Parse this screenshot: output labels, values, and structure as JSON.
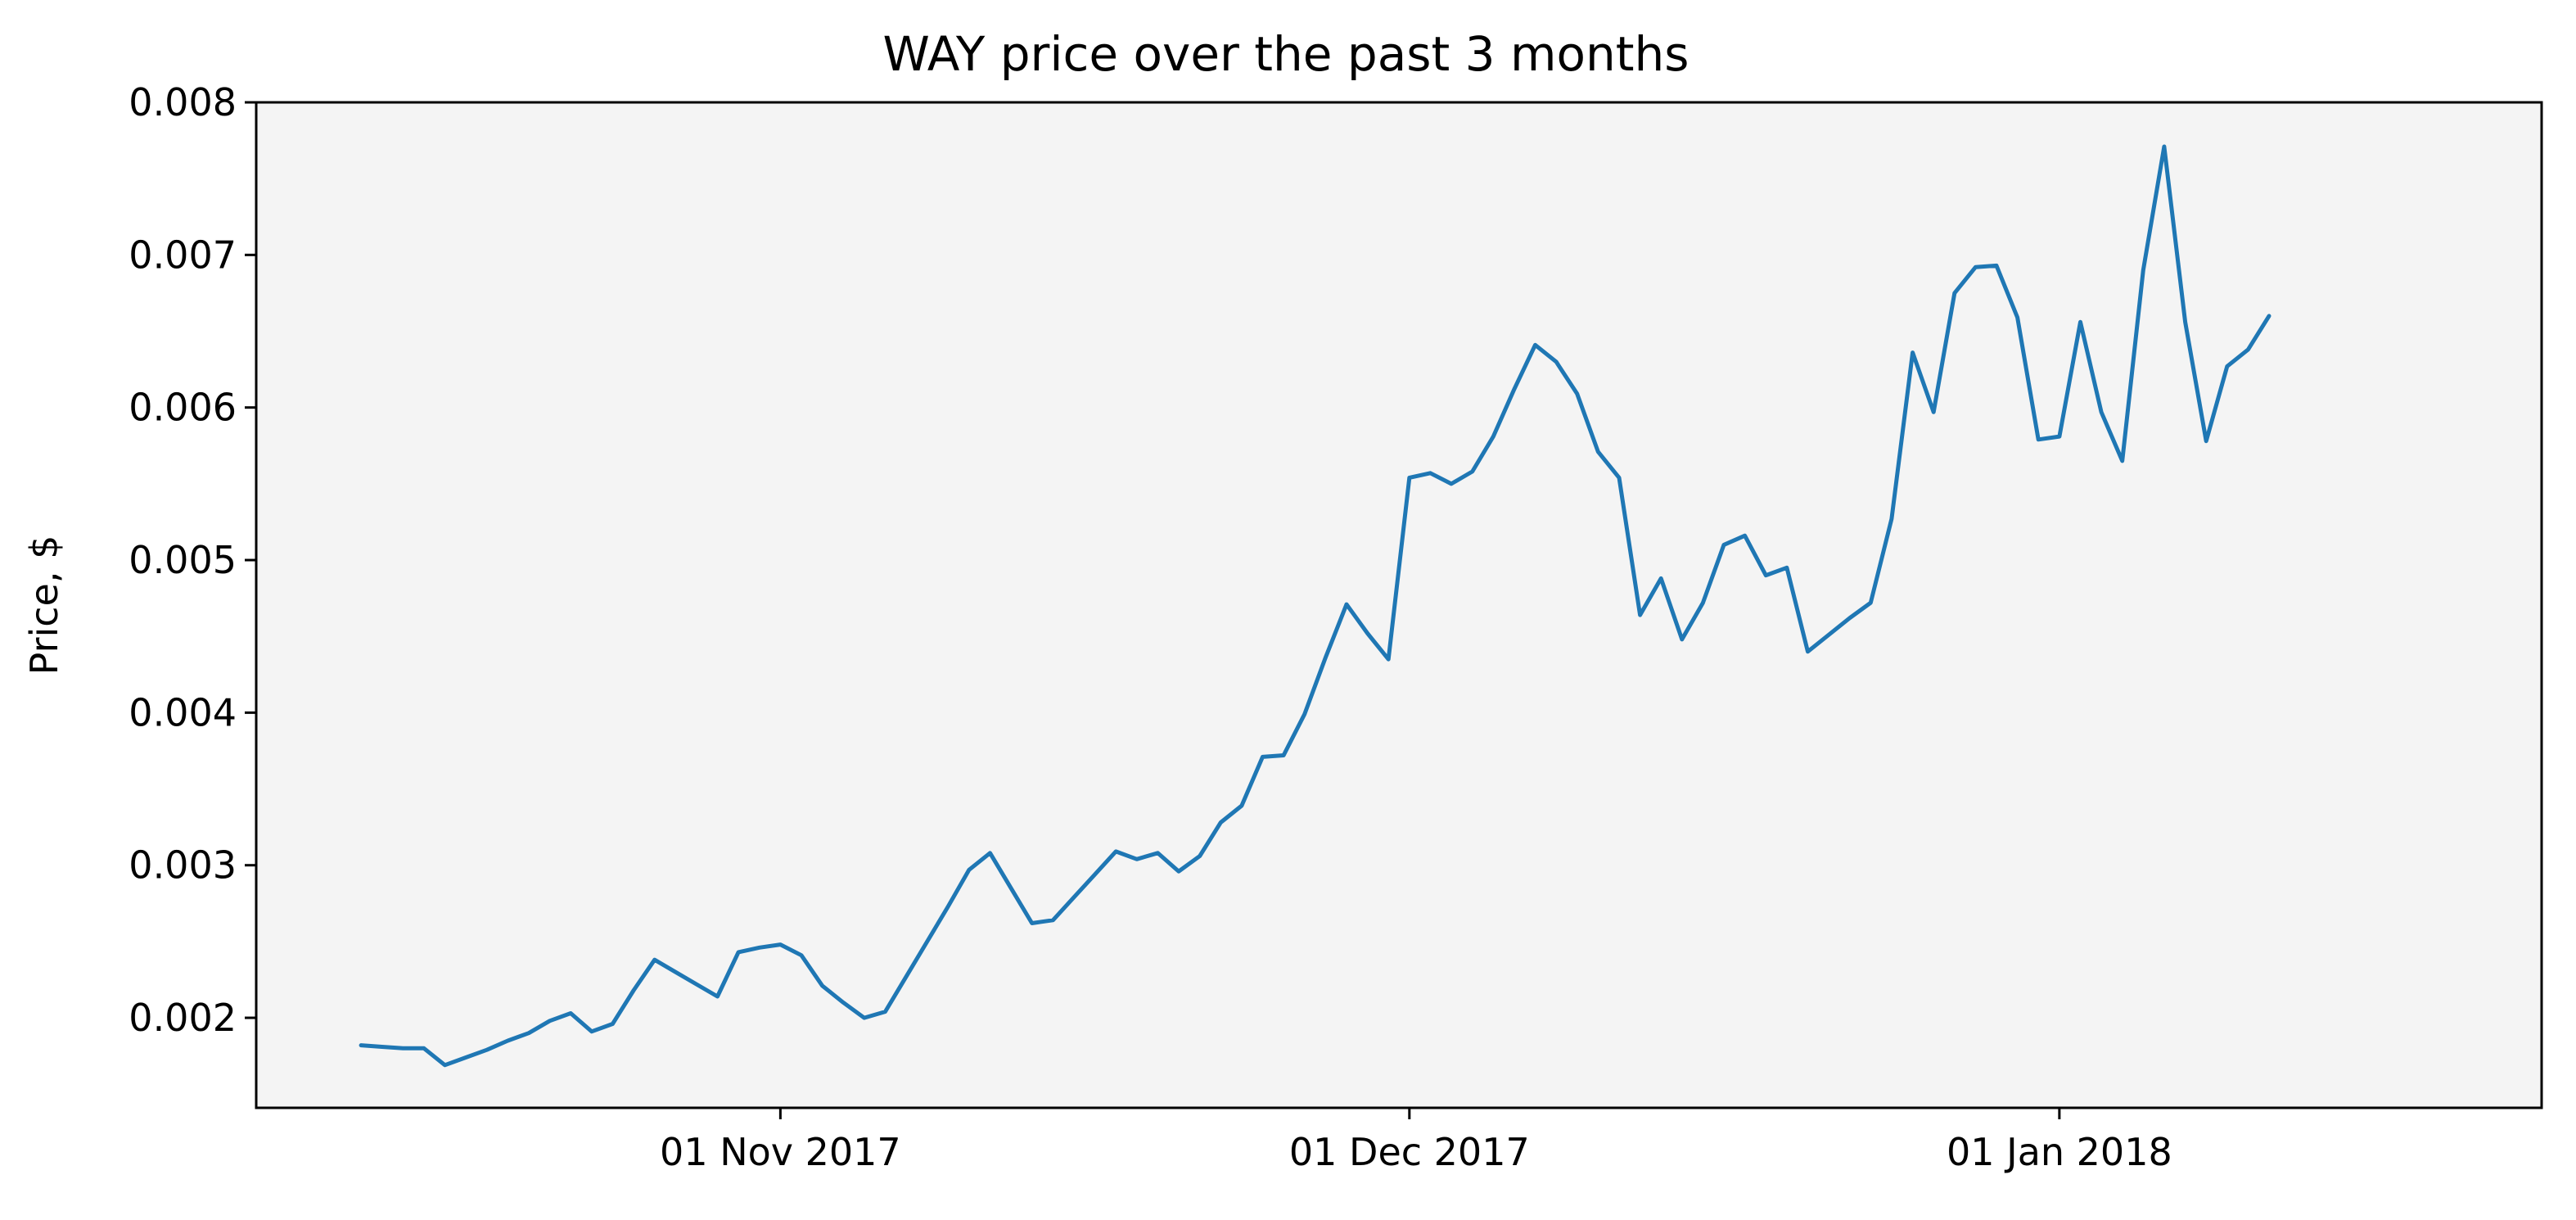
{
  "chart_data": {
    "type": "line",
    "title": "WAY price over the past 3 months",
    "xlabel": "",
    "ylabel": "Price, $",
    "xlim": [
      "2017-10-07",
      "2018-01-24"
    ],
    "ylim": [
      0.00141,
      0.008
    ],
    "grid": false,
    "legend": "none",
    "colors": {
      "line": "#1f77b4",
      "plot_bg": "#f4f4f4",
      "axis": "#000000"
    },
    "x_ticks": [
      {
        "date": "2017-11-01",
        "label": "01 Nov 2017"
      },
      {
        "date": "2017-12-01",
        "label": "01 Dec 2017"
      },
      {
        "date": "2018-01-01",
        "label": "01 Jan 2018"
      }
    ],
    "y_ticks": [
      {
        "value": 0.002,
        "label": "0.002"
      },
      {
        "value": 0.003,
        "label": "0.003"
      },
      {
        "value": 0.004,
        "label": "0.004"
      },
      {
        "value": 0.005,
        "label": "0.005"
      },
      {
        "value": 0.006,
        "label": "0.006"
      },
      {
        "value": 0.007,
        "label": "0.007"
      },
      {
        "value": 0.008,
        "label": "0.008"
      }
    ],
    "series": [
      {
        "points": [
          [
            "2017-10-12",
            0.00182
          ],
          [
            "2017-10-13",
            0.00181
          ],
          [
            "2017-10-14",
            0.0018
          ],
          [
            "2017-10-15",
            0.0018
          ],
          [
            "2017-10-16",
            0.00169
          ],
          [
            "2017-10-17",
            0.00174
          ],
          [
            "2017-10-18",
            0.00179
          ],
          [
            "2017-10-19",
            0.00185
          ],
          [
            "2017-10-20",
            0.0019
          ],
          [
            "2017-10-21",
            0.00198
          ],
          [
            "2017-10-22",
            0.00203
          ],
          [
            "2017-10-23",
            0.00191
          ],
          [
            "2017-10-24",
            0.00196
          ],
          [
            "2017-10-25",
            0.00218
          ],
          [
            "2017-10-26",
            0.00238
          ],
          [
            "2017-10-27",
            0.0023
          ],
          [
            "2017-10-28",
            0.00222
          ],
          [
            "2017-10-29",
            0.00214
          ],
          [
            "2017-10-30",
            0.00243
          ],
          [
            "2017-10-31",
            0.00246
          ],
          [
            "2017-11-01",
            0.00248
          ],
          [
            "2017-11-02",
            0.00241
          ],
          [
            "2017-11-03",
            0.00221
          ],
          [
            "2017-11-04",
            0.0021
          ],
          [
            "2017-11-05",
            0.002
          ],
          [
            "2017-11-06",
            0.00204
          ],
          [
            "2017-11-07",
            0.00227
          ],
          [
            "2017-11-08",
            0.0025
          ],
          [
            "2017-11-09",
            0.00273
          ],
          [
            "2017-11-10",
            0.00297
          ],
          [
            "2017-11-11",
            0.00308
          ],
          [
            "2017-11-12",
            0.00285
          ],
          [
            "2017-11-13",
            0.00262
          ],
          [
            "2017-11-14",
            0.00264
          ],
          [
            "2017-11-15",
            0.00279
          ],
          [
            "2017-11-16",
            0.00294
          ],
          [
            "2017-11-17",
            0.00309
          ],
          [
            "2017-11-18",
            0.00304
          ],
          [
            "2017-11-19",
            0.00308
          ],
          [
            "2017-11-20",
            0.00296
          ],
          [
            "2017-11-21",
            0.00306
          ],
          [
            "2017-11-22",
            0.00328
          ],
          [
            "2017-11-23",
            0.00339
          ],
          [
            "2017-11-24",
            0.00371
          ],
          [
            "2017-11-25",
            0.00372
          ],
          [
            "2017-11-26",
            0.00399
          ],
          [
            "2017-11-27",
            0.00436
          ],
          [
            "2017-11-28",
            0.00471
          ],
          [
            "2017-11-29",
            0.00452
          ],
          [
            "2017-11-30",
            0.00435
          ],
          [
            "2017-12-01",
            0.00554
          ],
          [
            "2017-12-02",
            0.00557
          ],
          [
            "2017-12-03",
            0.0055
          ],
          [
            "2017-12-04",
            0.00558
          ],
          [
            "2017-12-05",
            0.00581
          ],
          [
            "2017-12-06",
            0.00612
          ],
          [
            "2017-12-07",
            0.00641
          ],
          [
            "2017-12-08",
            0.0063
          ],
          [
            "2017-12-09",
            0.00609
          ],
          [
            "2017-12-10",
            0.00571
          ],
          [
            "2017-12-11",
            0.00554
          ],
          [
            "2017-12-12",
            0.00464
          ],
          [
            "2017-12-13",
            0.00488
          ],
          [
            "2017-12-14",
            0.00448
          ],
          [
            "2017-12-15",
            0.00472
          ],
          [
            "2017-12-16",
            0.0051
          ],
          [
            "2017-12-17",
            0.00516
          ],
          [
            "2017-12-18",
            0.0049
          ],
          [
            "2017-12-19",
            0.00495
          ],
          [
            "2017-12-20",
            0.0044
          ],
          [
            "2017-12-21",
            0.00451
          ],
          [
            "2017-12-22",
            0.00462
          ],
          [
            "2017-12-23",
            0.00472
          ],
          [
            "2017-12-24",
            0.00527
          ],
          [
            "2017-12-25",
            0.00636
          ],
          [
            "2017-12-26",
            0.00597
          ],
          [
            "2017-12-27",
            0.00675
          ],
          [
            "2017-12-28",
            0.00692
          ],
          [
            "2017-12-29",
            0.00693
          ],
          [
            "2017-12-30",
            0.00659
          ],
          [
            "2017-12-31",
            0.00579
          ],
          [
            "2018-01-01",
            0.00581
          ],
          [
            "2018-01-02",
            0.00656
          ],
          [
            "2018-01-03",
            0.00597
          ],
          [
            "2018-01-04",
            0.00565
          ],
          [
            "2018-01-05",
            0.0069
          ],
          [
            "2018-01-06",
            0.00771
          ],
          [
            "2018-01-07",
            0.00656
          ],
          [
            "2018-01-08",
            0.00578
          ],
          [
            "2018-01-09",
            0.00627
          ],
          [
            "2018-01-10",
            0.00638
          ],
          [
            "2018-01-11",
            0.0066
          ]
        ]
      }
    ]
  }
}
